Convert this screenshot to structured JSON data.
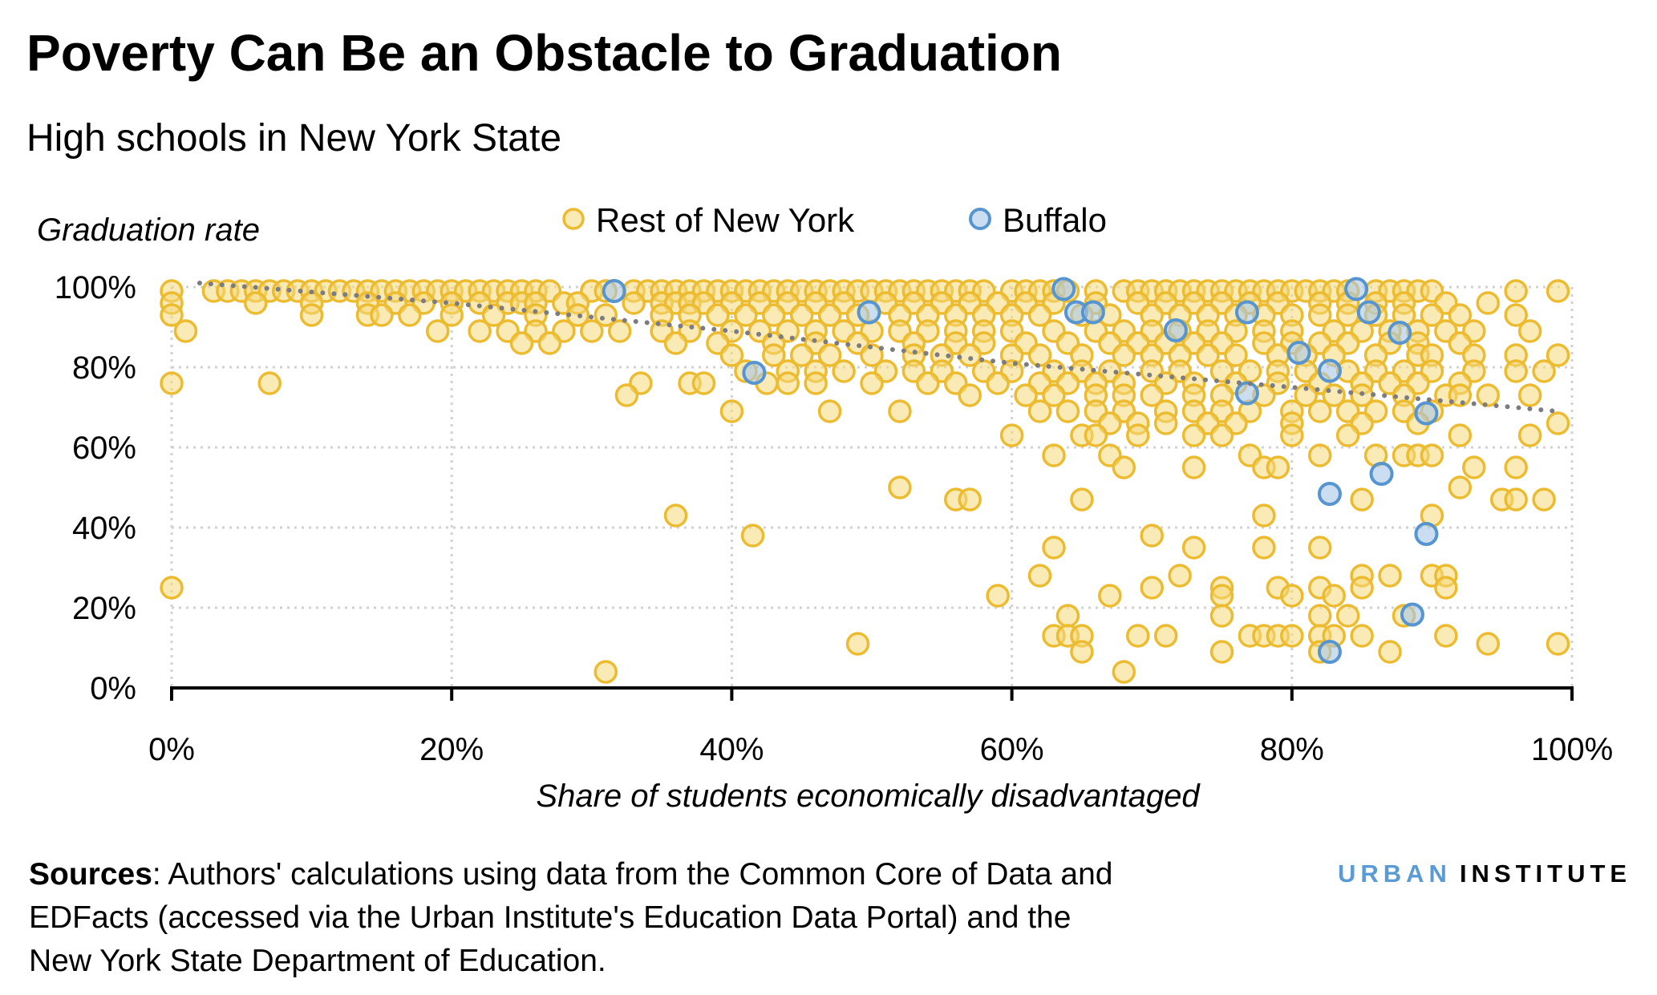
{
  "chart_data": {
    "type": "scatter",
    "title": "Poverty Can Be an Obstacle to Graduation",
    "subtitle": "High schools in New York State",
    "xlabel": "Share of students economically disadvantaged",
    "ylabel": "Graduation rate",
    "xlim": [
      0,
      100
    ],
    "ylim": [
      0,
      100
    ],
    "x_ticks": [
      "0%",
      "20%",
      "40%",
      "60%",
      "80%",
      "100%"
    ],
    "y_ticks": [
      "0%",
      "20%",
      "40%",
      "60%",
      "80%",
      "100%"
    ],
    "grid": true,
    "legend_placement": "top",
    "colors": {
      "rest": "#ecbb2f",
      "buffalo": "#5795d0",
      "trend": "#7b7b80"
    },
    "trend_line": [
      [
        2,
        101
      ],
      [
        20,
        96
      ],
      [
        40,
        89
      ],
      [
        60,
        81
      ],
      [
        80,
        75
      ],
      [
        99,
        69
      ]
    ],
    "series": [
      {
        "name": "Rest of New York",
        "rows": [
          {
            "y": 99,
            "x": [
              0,
              3,
              4,
              5,
              6,
              7,
              8,
              9,
              10,
              11,
              12,
              13,
              14,
              15,
              16,
              17,
              18,
              19,
              20,
              21,
              22,
              23,
              24,
              25,
              26,
              27,
              30,
              31,
              33,
              34,
              35,
              36,
              37,
              38,
              39,
              40,
              41,
              42,
              43,
              44,
              45,
              46,
              47,
              48,
              49,
              50,
              51,
              52,
              53,
              54,
              55,
              56,
              57,
              58,
              60,
              61,
              62,
              63,
              64,
              66,
              68,
              69,
              70,
              71,
              72,
              73,
              74,
              75,
              76,
              77,
              78,
              79,
              80,
              81,
              82,
              83,
              84,
              86,
              87,
              88,
              89,
              90,
              96,
              99
            ]
          },
          {
            "y": 96,
            "x": [
              0,
              6,
              10,
              14,
              16,
              18,
              20,
              22,
              24,
              25,
              26,
              28,
              29,
              33,
              35,
              36,
              37,
              38,
              40,
              42,
              44,
              46,
              48,
              51,
              53,
              55,
              57,
              59,
              61,
              63,
              66,
              69,
              71,
              73,
              75,
              77,
              79,
              82,
              84,
              86,
              88,
              91,
              94
            ]
          },
          {
            "y": 93,
            "x": [
              0,
              10,
              14,
              15,
              17,
              20,
              23,
              26,
              29,
              31,
              35,
              37,
              39,
              41,
              43,
              45,
              47,
              49,
              52,
              54,
              56,
              58,
              60,
              62,
              65,
              67,
              70,
              72,
              74,
              76,
              78,
              80,
              82,
              84,
              86,
              88,
              90,
              92,
              96
            ]
          },
          {
            "y": 89,
            "x": [
              1,
              19,
              22,
              24,
              26,
              28,
              30,
              32,
              35,
              37,
              40,
              42,
              44,
              46,
              48,
              50,
              52,
              54,
              56,
              58,
              60,
              63,
              66,
              68,
              70,
              72,
              74,
              76,
              78,
              80,
              83,
              85,
              87,
              89,
              91,
              93,
              97
            ]
          },
          {
            "y": 86,
            "x": [
              25,
              27,
              36,
              39,
              43,
              46,
              49,
              53,
              56,
              58,
              61,
              64,
              67,
              69,
              71,
              73,
              75,
              78,
              80,
              82,
              84,
              87,
              89,
              92
            ]
          },
          {
            "y": 83,
            "x": [
              40,
              43,
              45,
              47,
              50,
              53,
              55,
              57,
              60,
              62,
              65,
              68,
              70,
              72,
              74,
              76,
              79,
              81,
              83,
              86,
              89,
              90,
              93,
              96,
              99
            ]
          },
          {
            "y": 79,
            "x": [
              41,
              44,
              46,
              48,
              51,
              53,
              55,
              58,
              60,
              63,
              65,
              67,
              70,
              72,
              75,
              77,
              79,
              81,
              84,
              86,
              88,
              90,
              93,
              96,
              98
            ]
          },
          {
            "y": 76,
            "x": [
              0,
              7,
              33.5,
              37,
              38,
              42.5,
              44,
              46,
              50,
              54,
              56,
              59,
              62,
              64,
              66,
              68,
              71,
              73,
              76,
              79,
              82,
              85,
              87,
              89,
              92
            ]
          },
          {
            "y": 73,
            "x": [
              32.5,
              57,
              61,
              63,
              66,
              68,
              70,
              73,
              75,
              78,
              81,
              83,
              85,
              88,
              91,
              92,
              94,
              97
            ]
          },
          {
            "y": 69,
            "x": [
              40,
              47,
              52,
              62,
              64,
              66,
              68,
              71,
              73,
              75,
              77,
              80,
              82,
              84,
              86,
              88,
              90
            ]
          },
          {
            "y": 66,
            "x": [
              67,
              69,
              71,
              74,
              76,
              80,
              85,
              89,
              99
            ]
          },
          {
            "y": 63,
            "x": [
              60,
              65,
              66,
              69,
              73,
              75,
              80,
              84,
              92,
              97
            ]
          },
          {
            "y": 58,
            "x": [
              63,
              67,
              77,
              82,
              86,
              88,
              89,
              90
            ]
          },
          {
            "y": 55,
            "x": [
              68,
              73,
              78,
              79,
              93,
              96
            ]
          },
          {
            "y": 50,
            "x": [
              52,
              92
            ]
          },
          {
            "y": 47,
            "x": [
              56,
              57,
              65,
              85,
              95,
              96,
              98
            ]
          },
          {
            "y": 43,
            "x": [
              36,
              78,
              90
            ]
          },
          {
            "y": 38,
            "x": [
              41.5,
              70
            ]
          },
          {
            "y": 35,
            "x": [
              63,
              73,
              78,
              82
            ]
          },
          {
            "y": 28,
            "x": [
              62,
              72,
              85,
              87,
              90,
              91
            ]
          },
          {
            "y": 25,
            "x": [
              0,
              70,
              75,
              79,
              82,
              85,
              91
            ]
          },
          {
            "y": 23,
            "x": [
              59,
              67,
              75,
              80,
              83
            ]
          },
          {
            "y": 18,
            "x": [
              64,
              75,
              82,
              84,
              88
            ]
          },
          {
            "y": 13,
            "x": [
              63,
              64,
              65,
              69,
              71,
              77,
              78,
              79,
              80,
              82,
              83,
              85,
              91
            ]
          },
          {
            "y": 11,
            "x": [
              49,
              94,
              99
            ]
          },
          {
            "y": 9,
            "x": [
              65,
              75,
              82,
              87
            ]
          },
          {
            "y": 4,
            "x": [
              31,
              68
            ]
          }
        ]
      },
      {
        "name": "Buffalo",
        "points": [
          [
            31.6,
            99
          ],
          [
            41.6,
            78.6
          ],
          [
            49.8,
            93.7
          ],
          [
            63.7,
            99.5
          ],
          [
            64.6,
            93.7
          ],
          [
            65.8,
            93.7
          ],
          [
            71.7,
            89.2
          ],
          [
            76.8,
            93.7
          ],
          [
            76.8,
            73.5
          ],
          [
            80.5,
            83.6
          ],
          [
            82.7,
            79.1
          ],
          [
            84.6,
            99.5
          ],
          [
            85.5,
            93.7
          ],
          [
            87.7,
            88.6
          ],
          [
            89.6,
            68.5
          ],
          [
            82.7,
            48.4
          ],
          [
            86.4,
            53.4
          ],
          [
            89.6,
            38.4
          ],
          [
            88.6,
            18.3
          ],
          [
            82.7,
            9
          ]
        ]
      }
    ]
  },
  "source": {
    "label": "Sources",
    "lines": [
      ": Authors' calculations using data from the Common Core of Data and",
      "EDFacts (accessed via the Urban Institute's Education Data Portal) and the",
      "New York State Department of Education."
    ]
  },
  "logo": {
    "part1": "URBAN",
    "part2": "INSTITUTE"
  }
}
